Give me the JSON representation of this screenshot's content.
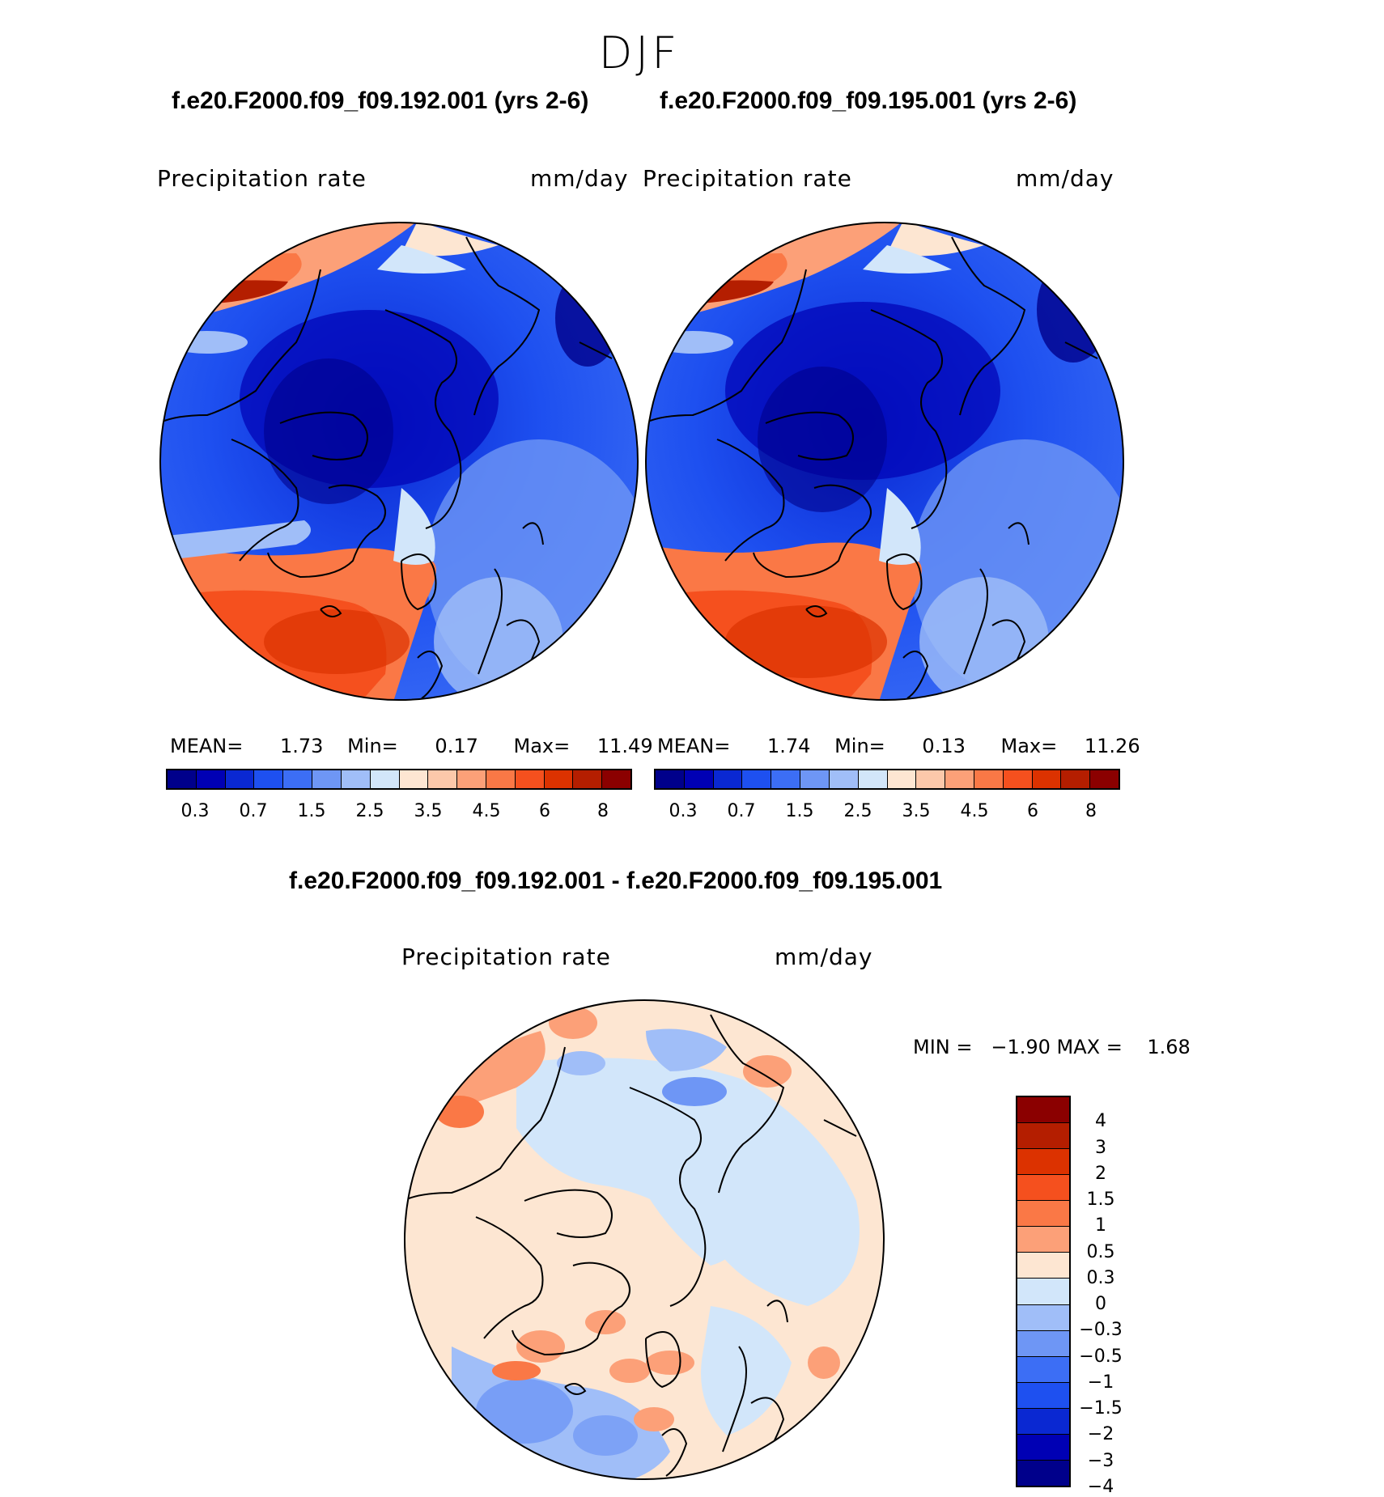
{
  "season": "DJF",
  "panels": {
    "left": {
      "case": "f.e20.F2000.f09_f09.192.001 (yrs 2-6)",
      "variable": "Precipitation rate",
      "units": "mm/day",
      "stats": {
        "mean_label": "MEAN=",
        "mean": "1.73",
        "min_label": "Min=",
        "min": "0.17",
        "max_label": "Max=",
        "max": "11.49"
      }
    },
    "right": {
      "case": "f.e20.F2000.f09_f09.195.001 (yrs 2-6)",
      "variable": "Precipitation rate",
      "units": "mm/day",
      "stats": {
        "mean_label": "MEAN=",
        "mean": "1.74",
        "min_label": "Min=",
        "min": "0.13",
        "max_label": "Max=",
        "max": "11.26"
      }
    },
    "diff": {
      "case": "f.e20.F2000.f09_f09.192.001 - f.e20.F2000.f09_f09.195.001",
      "variable": "Precipitation rate",
      "units": "mm/day",
      "minmax": "MIN =   −1.90 MAX =    1.68"
    }
  },
  "abs_colorbar": {
    "colors": [
      "#00008b",
      "#0000b4",
      "#0a28d2",
      "#1e50f0",
      "#3c6ef5",
      "#6e96f5",
      "#a0bef8",
      "#d2e6fa",
      "#fde6d2",
      "#fcc8aa",
      "#fca078",
      "#fa7846",
      "#f5501e",
      "#dc3200",
      "#b41e00",
      "#8b0000"
    ],
    "tick_labels": [
      "0.3",
      "0.7",
      "1.5",
      "2.5",
      "3.5",
      "4.5",
      "6",
      "8"
    ]
  },
  "diff_colorbar": {
    "colors": [
      "#8b0000",
      "#b41e00",
      "#dc3200",
      "#f5501e",
      "#fa7846",
      "#fca078",
      "#fde6d2",
      "#d2e6fa",
      "#a0bef8",
      "#6e96f5",
      "#3c6ef5",
      "#1e50f0",
      "#0a28d2",
      "#0000b4",
      "#00008b"
    ],
    "tick_labels": [
      "4",
      "3",
      "2",
      "1.5",
      "1",
      "0.5",
      "0.3",
      "0",
      "−0.3",
      "−0.5",
      "−1",
      "−1.5",
      "−2",
      "−3",
      "−4"
    ]
  }
}
